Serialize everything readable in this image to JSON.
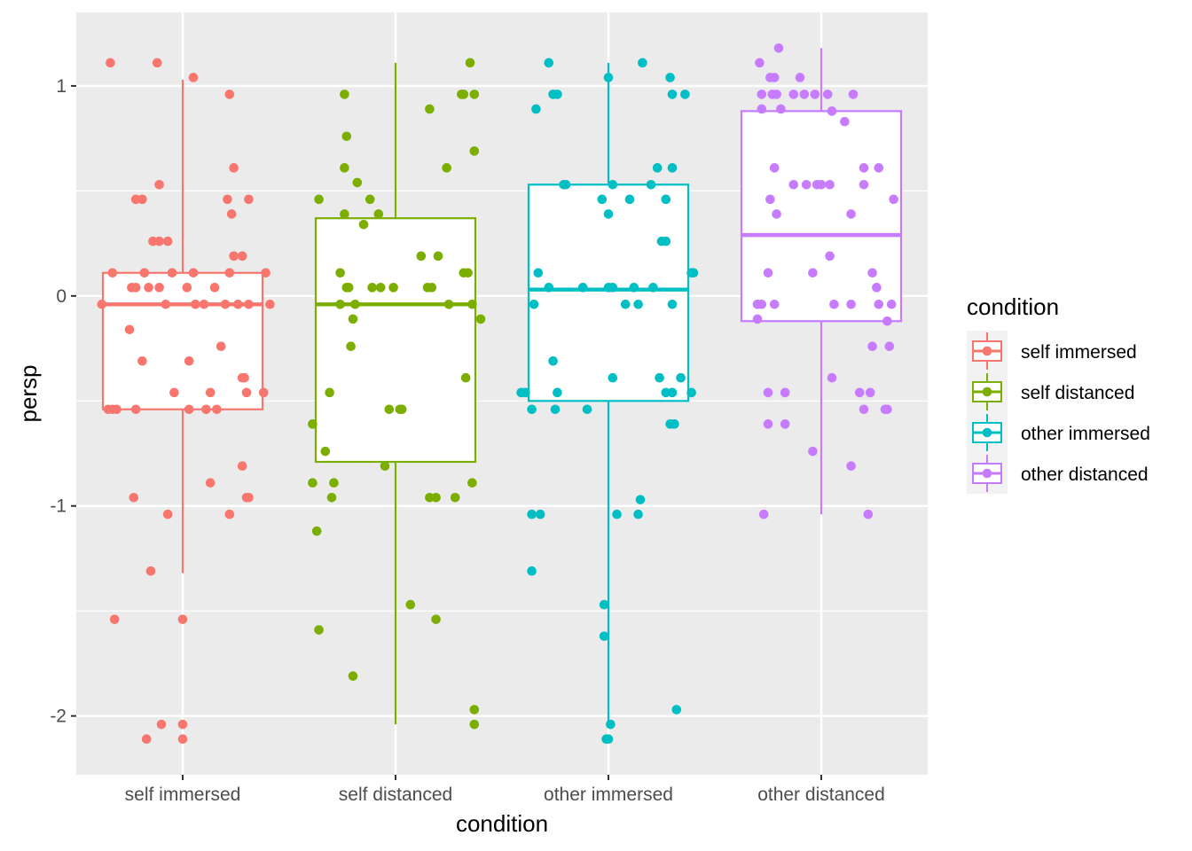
{
  "chart_data": {
    "type": "boxplot",
    "xlabel": "condition",
    "ylabel": "persp",
    "ylim": [
      -2.28,
      1.35
    ],
    "yticks": [
      -2,
      -1,
      0,
      1
    ],
    "ytick_labels": [
      "-2",
      "-1",
      "0",
      "1"
    ],
    "categories": [
      "self immersed",
      "self distanced",
      "other immersed",
      "other distanced"
    ],
    "legend": {
      "title": "condition",
      "placement": "right",
      "entries": [
        "self immersed",
        "self distanced",
        "other immersed",
        "other distanced"
      ]
    },
    "grid": true,
    "series": [
      {
        "name": "self immersed",
        "color": "#F8766D",
        "box": {
          "whisker_low": -1.32,
          "q1": -0.54,
          "median": -0.04,
          "q3": 0.11,
          "whisker_high": 1.03
        },
        "points": [
          [
            -0.34,
            1.11
          ],
          [
            -0.12,
            1.11
          ],
          [
            0.05,
            1.04
          ],
          [
            0.22,
            0.96
          ],
          [
            0.24,
            0.61
          ],
          [
            0.23,
            0.39
          ],
          [
            0.21,
            0.46
          ],
          [
            0.31,
            0.46
          ],
          [
            -0.22,
            0.46
          ],
          [
            -0.19,
            0.46
          ],
          [
            -0.11,
            0.53
          ],
          [
            0.24,
            0.19
          ],
          [
            0.28,
            0.19
          ],
          [
            -0.11,
            0.26
          ],
          [
            -0.14,
            0.26
          ],
          [
            -0.07,
            0.26
          ],
          [
            -0.33,
            0.11
          ],
          [
            -0.18,
            0.11
          ],
          [
            0.05,
            0.11
          ],
          [
            -0.05,
            0.11
          ],
          [
            0.22,
            0.11
          ],
          [
            0.39,
            0.11
          ],
          [
            -0.22,
            0.04
          ],
          [
            -0.16,
            0.04
          ],
          [
            -0.24,
            0.04
          ],
          [
            -0.11,
            0.04
          ],
          [
            0.02,
            0.04
          ],
          [
            0.15,
            0.04
          ],
          [
            -0.38,
            -0.04
          ],
          [
            -0.08,
            -0.04
          ],
          [
            0.06,
            -0.04
          ],
          [
            0.1,
            -0.04
          ],
          [
            0.2,
            -0.04
          ],
          [
            0.26,
            -0.04
          ],
          [
            0.31,
            -0.04
          ],
          [
            0.41,
            -0.04
          ],
          [
            -0.25,
            -0.16
          ],
          [
            -0.19,
            -0.31
          ],
          [
            0.03,
            -0.31
          ],
          [
            0.18,
            -0.24
          ],
          [
            0.28,
            -0.39
          ],
          [
            0.29,
            -0.39
          ],
          [
            -0.04,
            -0.46
          ],
          [
            0.13,
            -0.46
          ],
          [
            0.3,
            -0.46
          ],
          [
            0.38,
            -0.46
          ],
          [
            -0.33,
            -0.54
          ],
          [
            -0.35,
            -0.54
          ],
          [
            -0.31,
            -0.54
          ],
          [
            -0.22,
            -0.54
          ],
          [
            0.03,
            -0.54
          ],
          [
            0.11,
            -0.54
          ],
          [
            0.16,
            -0.54
          ],
          [
            0.28,
            -0.81
          ],
          [
            0.13,
            -0.89
          ],
          [
            0.31,
            -0.96
          ],
          [
            0.3,
            -0.96
          ],
          [
            -0.23,
            -0.96
          ],
          [
            -0.07,
            -1.04
          ],
          [
            0.22,
            -1.04
          ],
          [
            -0.15,
            -1.31
          ],
          [
            -0.32,
            -1.54
          ],
          [
            0.0,
            -1.54
          ],
          [
            -0.1,
            -2.04
          ],
          [
            0.0,
            -2.04
          ],
          [
            -0.17,
            -2.11
          ],
          [
            0.0,
            -2.11
          ]
        ]
      },
      {
        "name": "self distanced",
        "color": "#7CAE00",
        "box": {
          "whisker_low": -2.04,
          "q1": -0.79,
          "median": -0.04,
          "q3": 0.37,
          "whisker_high": 1.11
        },
        "points": [
          [
            -0.24,
            0.96
          ],
          [
            0.35,
            1.11
          ],
          [
            0.31,
            0.96
          ],
          [
            0.32,
            0.96
          ],
          [
            0.37,
            0.96
          ],
          [
            0.16,
            0.89
          ],
          [
            -0.23,
            0.76
          ],
          [
            -0.24,
            0.61
          ],
          [
            -0.18,
            0.54
          ],
          [
            0.24,
            0.61
          ],
          [
            0.37,
            0.69
          ],
          [
            -0.36,
            0.46
          ],
          [
            -0.12,
            0.46
          ],
          [
            -0.24,
            0.39
          ],
          [
            -0.08,
            0.39
          ],
          [
            -0.15,
            0.34
          ],
          [
            0.12,
            0.19
          ],
          [
            0.2,
            0.19
          ],
          [
            -0.26,
            0.11
          ],
          [
            0.32,
            0.11
          ],
          [
            0.34,
            0.11
          ],
          [
            -0.23,
            0.04
          ],
          [
            -0.22,
            0.04
          ],
          [
            -0.11,
            0.04
          ],
          [
            -0.07,
            0.04
          ],
          [
            -0.01,
            0.04
          ],
          [
            0.15,
            0.04
          ],
          [
            0.17,
            0.04
          ],
          [
            -0.26,
            -0.04
          ],
          [
            -0.19,
            -0.04
          ],
          [
            0.25,
            -0.04
          ],
          [
            0.36,
            -0.04
          ],
          [
            -0.2,
            -0.11
          ],
          [
            0.4,
            -0.11
          ],
          [
            0.33,
            -0.39
          ],
          [
            -0.21,
            -0.24
          ],
          [
            -0.31,
            -0.46
          ],
          [
            -0.03,
            -0.54
          ],
          [
            0.02,
            -0.54
          ],
          [
            0.03,
            -0.54
          ],
          [
            -0.39,
            -0.61
          ],
          [
            -0.33,
            -0.74
          ],
          [
            -0.05,
            -0.81
          ],
          [
            -0.39,
            -0.89
          ],
          [
            -0.29,
            -0.89
          ],
          [
            -0.3,
            -0.96
          ],
          [
            0.16,
            -0.96
          ],
          [
            0.19,
            -0.96
          ],
          [
            0.28,
            -0.96
          ],
          [
            0.36,
            -0.89
          ],
          [
            -0.37,
            -1.12
          ],
          [
            0.07,
            -1.47
          ],
          [
            0.19,
            -1.54
          ],
          [
            -0.36,
            -1.59
          ],
          [
            -0.2,
            -1.81
          ],
          [
            0.37,
            -1.97
          ],
          [
            0.37,
            -2.04
          ]
        ]
      },
      {
        "name": "other immersed",
        "color": "#00BFC4",
        "box": {
          "whisker_low": -2.04,
          "q1": -0.5,
          "median": 0.03,
          "q3": 0.53,
          "whisker_high": 1.11
        },
        "points": [
          [
            -0.28,
            1.11
          ],
          [
            0.16,
            1.11
          ],
          [
            -0.26,
            0.96
          ],
          [
            -0.24,
            0.96
          ],
          [
            0.0,
            1.04
          ],
          [
            0.29,
            1.04
          ],
          [
            0.3,
            0.96
          ],
          [
            0.36,
            0.96
          ],
          [
            -0.34,
            0.89
          ],
          [
            0.23,
            0.61
          ],
          [
            0.3,
            0.61
          ],
          [
            -0.2,
            0.53
          ],
          [
            -0.21,
            0.53
          ],
          [
            0.02,
            0.53
          ],
          [
            0.2,
            0.53
          ],
          [
            -0.03,
            0.46
          ],
          [
            0.1,
            0.46
          ],
          [
            0.27,
            0.46
          ],
          [
            0.0,
            0.39
          ],
          [
            0.25,
            0.26
          ],
          [
            0.27,
            0.26
          ],
          [
            -0.33,
            0.11
          ],
          [
            0.39,
            0.11
          ],
          [
            0.4,
            0.11
          ],
          [
            -0.28,
            0.04
          ],
          [
            -0.12,
            0.04
          ],
          [
            0.0,
            0.04
          ],
          [
            0.02,
            0.04
          ],
          [
            0.12,
            0.04
          ],
          [
            0.21,
            0.04
          ],
          [
            -0.35,
            -0.04
          ],
          [
            0.08,
            -0.04
          ],
          [
            0.14,
            -0.04
          ],
          [
            0.3,
            -0.04
          ],
          [
            -0.26,
            -0.31
          ],
          [
            0.02,
            -0.39
          ],
          [
            0.24,
            -0.39
          ],
          [
            0.34,
            -0.39
          ],
          [
            -0.39,
            -0.46
          ],
          [
            -0.41,
            -0.46
          ],
          [
            -0.24,
            -0.46
          ],
          [
            0.27,
            -0.46
          ],
          [
            0.3,
            -0.46
          ],
          [
            0.39,
            -0.46
          ],
          [
            -0.36,
            -0.54
          ],
          [
            -0.25,
            -0.54
          ],
          [
            -0.1,
            -0.54
          ],
          [
            0.29,
            -0.61
          ],
          [
            0.31,
            -0.61
          ],
          [
            0.15,
            -0.97
          ],
          [
            0.04,
            -1.04
          ],
          [
            0.14,
            -1.04
          ],
          [
            -0.36,
            -1.04
          ],
          [
            -0.32,
            -1.04
          ],
          [
            -0.36,
            -1.31
          ],
          [
            -0.02,
            -1.47
          ],
          [
            -0.02,
            -1.62
          ],
          [
            0.32,
            -1.97
          ],
          [
            0.01,
            -2.04
          ],
          [
            -0.01,
            -2.11
          ],
          [
            0.0,
            -2.11
          ]
        ]
      },
      {
        "name": "other distanced",
        "color": "#C77CFF",
        "box": {
          "whisker_low": -1.04,
          "q1": -0.12,
          "median": 0.29,
          "q3": 0.88,
          "whisker_high": 1.18
        },
        "points": [
          [
            -0.29,
            1.11
          ],
          [
            -0.2,
            1.18
          ],
          [
            -0.24,
            1.04
          ],
          [
            -0.22,
            1.04
          ],
          [
            -0.1,
            1.04
          ],
          [
            -0.28,
            0.96
          ],
          [
            -0.23,
            0.96
          ],
          [
            -0.21,
            0.96
          ],
          [
            -0.13,
            0.96
          ],
          [
            -0.08,
            0.96
          ],
          [
            -0.03,
            0.96
          ],
          [
            0.03,
            0.96
          ],
          [
            0.15,
            0.96
          ],
          [
            -0.28,
            0.89
          ],
          [
            -0.19,
            0.89
          ],
          [
            0.05,
            0.88
          ],
          [
            0.11,
            0.83
          ],
          [
            -0.22,
            0.61
          ],
          [
            0.2,
            0.61
          ],
          [
            0.27,
            0.61
          ],
          [
            -0.13,
            0.53
          ],
          [
            -0.07,
            0.53
          ],
          [
            -0.02,
            0.53
          ],
          [
            0.0,
            0.53
          ],
          [
            0.04,
            0.53
          ],
          [
            0.2,
            0.53
          ],
          [
            -0.24,
            0.46
          ],
          [
            0.34,
            0.46
          ],
          [
            -0.21,
            0.39
          ],
          [
            0.14,
            0.39
          ],
          [
            0.04,
            0.19
          ],
          [
            -0.25,
            0.11
          ],
          [
            -0.04,
            0.11
          ],
          [
            0.24,
            0.11
          ],
          [
            0.26,
            0.04
          ],
          [
            -0.3,
            -0.04
          ],
          [
            -0.28,
            -0.04
          ],
          [
            -0.22,
            -0.04
          ],
          [
            0.06,
            -0.04
          ],
          [
            0.14,
            -0.04
          ],
          [
            0.27,
            -0.04
          ],
          [
            0.33,
            -0.04
          ],
          [
            -0.3,
            -0.11
          ],
          [
            0.31,
            -0.12
          ],
          [
            0.32,
            -0.24
          ],
          [
            0.24,
            -0.24
          ],
          [
            0.05,
            -0.39
          ],
          [
            -0.25,
            -0.46
          ],
          [
            -0.17,
            -0.46
          ],
          [
            0.18,
            -0.46
          ],
          [
            0.23,
            -0.46
          ],
          [
            0.2,
            -0.54
          ],
          [
            0.31,
            -0.54
          ],
          [
            -0.25,
            -0.61
          ],
          [
            -0.17,
            -0.61
          ],
          [
            -0.04,
            -0.74
          ],
          [
            0.14,
            -0.81
          ],
          [
            0.3,
            -0.54
          ],
          [
            -0.27,
            -1.04
          ],
          [
            0.22,
            -1.04
          ]
        ]
      }
    ]
  }
}
